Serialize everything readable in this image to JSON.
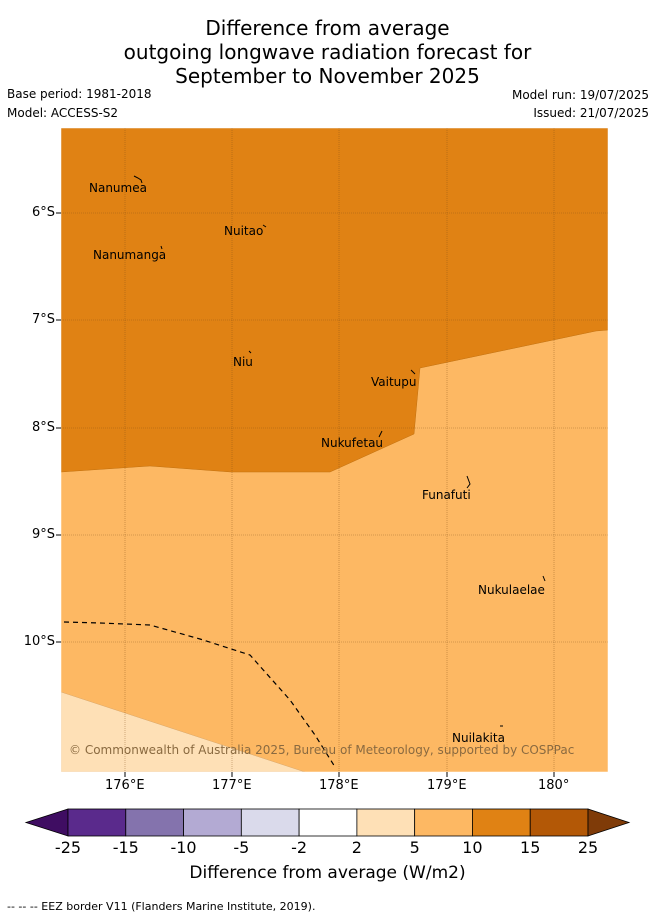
{
  "title": {
    "line1": "Difference from average",
    "line2": "outgoing longwave radiation forecast for",
    "line3": "September to November 2025"
  },
  "meta": {
    "base_period": "Base period: 1981-2018",
    "model": "Model: ACCESS-S2",
    "model_run": "Model run: 19/07/2025",
    "issued": "Issued: 21/07/2025"
  },
  "map": {
    "lat_labels": [
      "6°S",
      "7°S",
      "8°S",
      "9°S",
      "10°S"
    ],
    "lon_labels": [
      "176°E",
      "177°E",
      "178°E",
      "179°E",
      "180°"
    ],
    "places": [
      "Nanumea",
      "Nuitao",
      "Nanumanga",
      "Niu",
      "Vaitupu",
      "Nukufetau",
      "Funafuti",
      "Nukulaelae",
      "Nuilakita"
    ],
    "copyright": "© Commonwealth of Australia 2025, Bureau of Meteorology, supported by COSPPac"
  },
  "colorbar": {
    "ticks": [
      "-25",
      "-15",
      "-10",
      "-5",
      "-2",
      "2",
      "5",
      "10",
      "15",
      "25"
    ],
    "colors": [
      "#3f0d62",
      "#5a2a8c",
      "#8473ad",
      "#b3aad3",
      "#dadaeb",
      "#ffffff",
      "#fee0b6",
      "#fdb863",
      "#e08214",
      "#b35806",
      "#7f3b08"
    ],
    "label": "Difference from average (W/m2)"
  },
  "legend": {
    "eez": "--  --  -- EEZ border V11 (Flanders Marine Institute, 2019)."
  }
}
